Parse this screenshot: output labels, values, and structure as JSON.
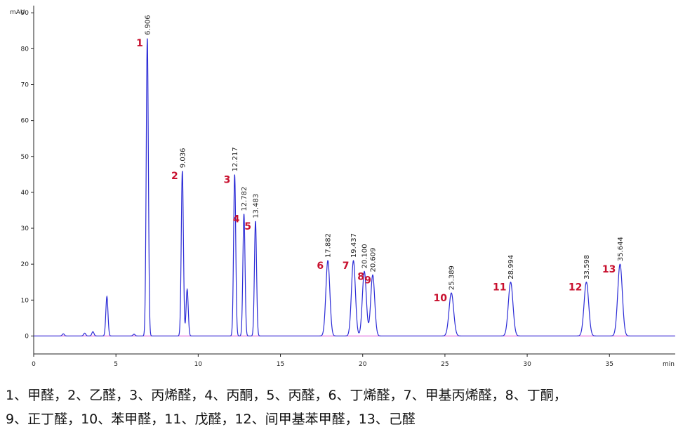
{
  "chart_data": {
    "type": "line",
    "ylabel": "mAU",
    "xlabel": "min",
    "xlim": [
      0,
      39
    ],
    "ylim": [
      -5,
      92
    ],
    "xticks": [
      0,
      5,
      10,
      15,
      20,
      25,
      30,
      35
    ],
    "yticks": [
      0,
      10,
      20,
      30,
      40,
      50,
      60,
      70,
      80,
      90
    ],
    "colors": {
      "trace": "#2b2bd6",
      "baseline": "#d64cd6",
      "peak_number": "#c8102e",
      "text": "#222222"
    },
    "peaks": [
      {
        "number": "1",
        "rt": 6.906,
        "rt_label": "6.906",
        "height": 83
      },
      {
        "number": "2",
        "rt": 9.036,
        "rt_label": "9.036",
        "height": 46
      },
      {
        "number": "3",
        "rt": 12.217,
        "rt_label": "12.217",
        "height": 45
      },
      {
        "number": "4",
        "rt": 12.782,
        "rt_label": "12.782",
        "height": 34
      },
      {
        "number": "5",
        "rt": 13.483,
        "rt_label": "13.483",
        "height": 32
      },
      {
        "number": "6",
        "rt": 17.882,
        "rt_label": "17.882",
        "height": 21
      },
      {
        "number": "7",
        "rt": 19.437,
        "rt_label": "19.437",
        "height": 21
      },
      {
        "number": "8",
        "rt": 20.1,
        "rt_label": "20.100",
        "height": 18
      },
      {
        "number": "9",
        "rt": 20.609,
        "rt_label": "20.609",
        "height": 17
      },
      {
        "number": "10",
        "rt": 25.389,
        "rt_label": "25.389",
        "height": 12
      },
      {
        "number": "11",
        "rt": 28.994,
        "rt_label": "28.994",
        "height": 15
      },
      {
        "number": "12",
        "rt": 33.598,
        "rt_label": "33.598",
        "height": 15
      },
      {
        "number": "13",
        "rt": 35.644,
        "rt_label": "35.644",
        "height": 20
      }
    ],
    "unlabeled_peaks": [
      {
        "rt": 4.45,
        "height": 11
      },
      {
        "rt": 9.33,
        "height": 13
      },
      {
        "rt": 1.8,
        "height": 0.6
      },
      {
        "rt": 3.1,
        "height": 0.8
      },
      {
        "rt": 3.6,
        "height": 1.2
      },
      {
        "rt": 6.1,
        "height": 0.5
      }
    ]
  },
  "caption": {
    "line1": "1、甲醛，2、乙醛，3、丙烯醛，4、丙酮，5、丙醛，6、丁烯醛，7、甲基丙烯醛，8、丁酮，",
    "line2": "9、正丁醛，10、苯甲醛，11、戊醛，12、间甲基苯甲醛，13、己醛"
  }
}
